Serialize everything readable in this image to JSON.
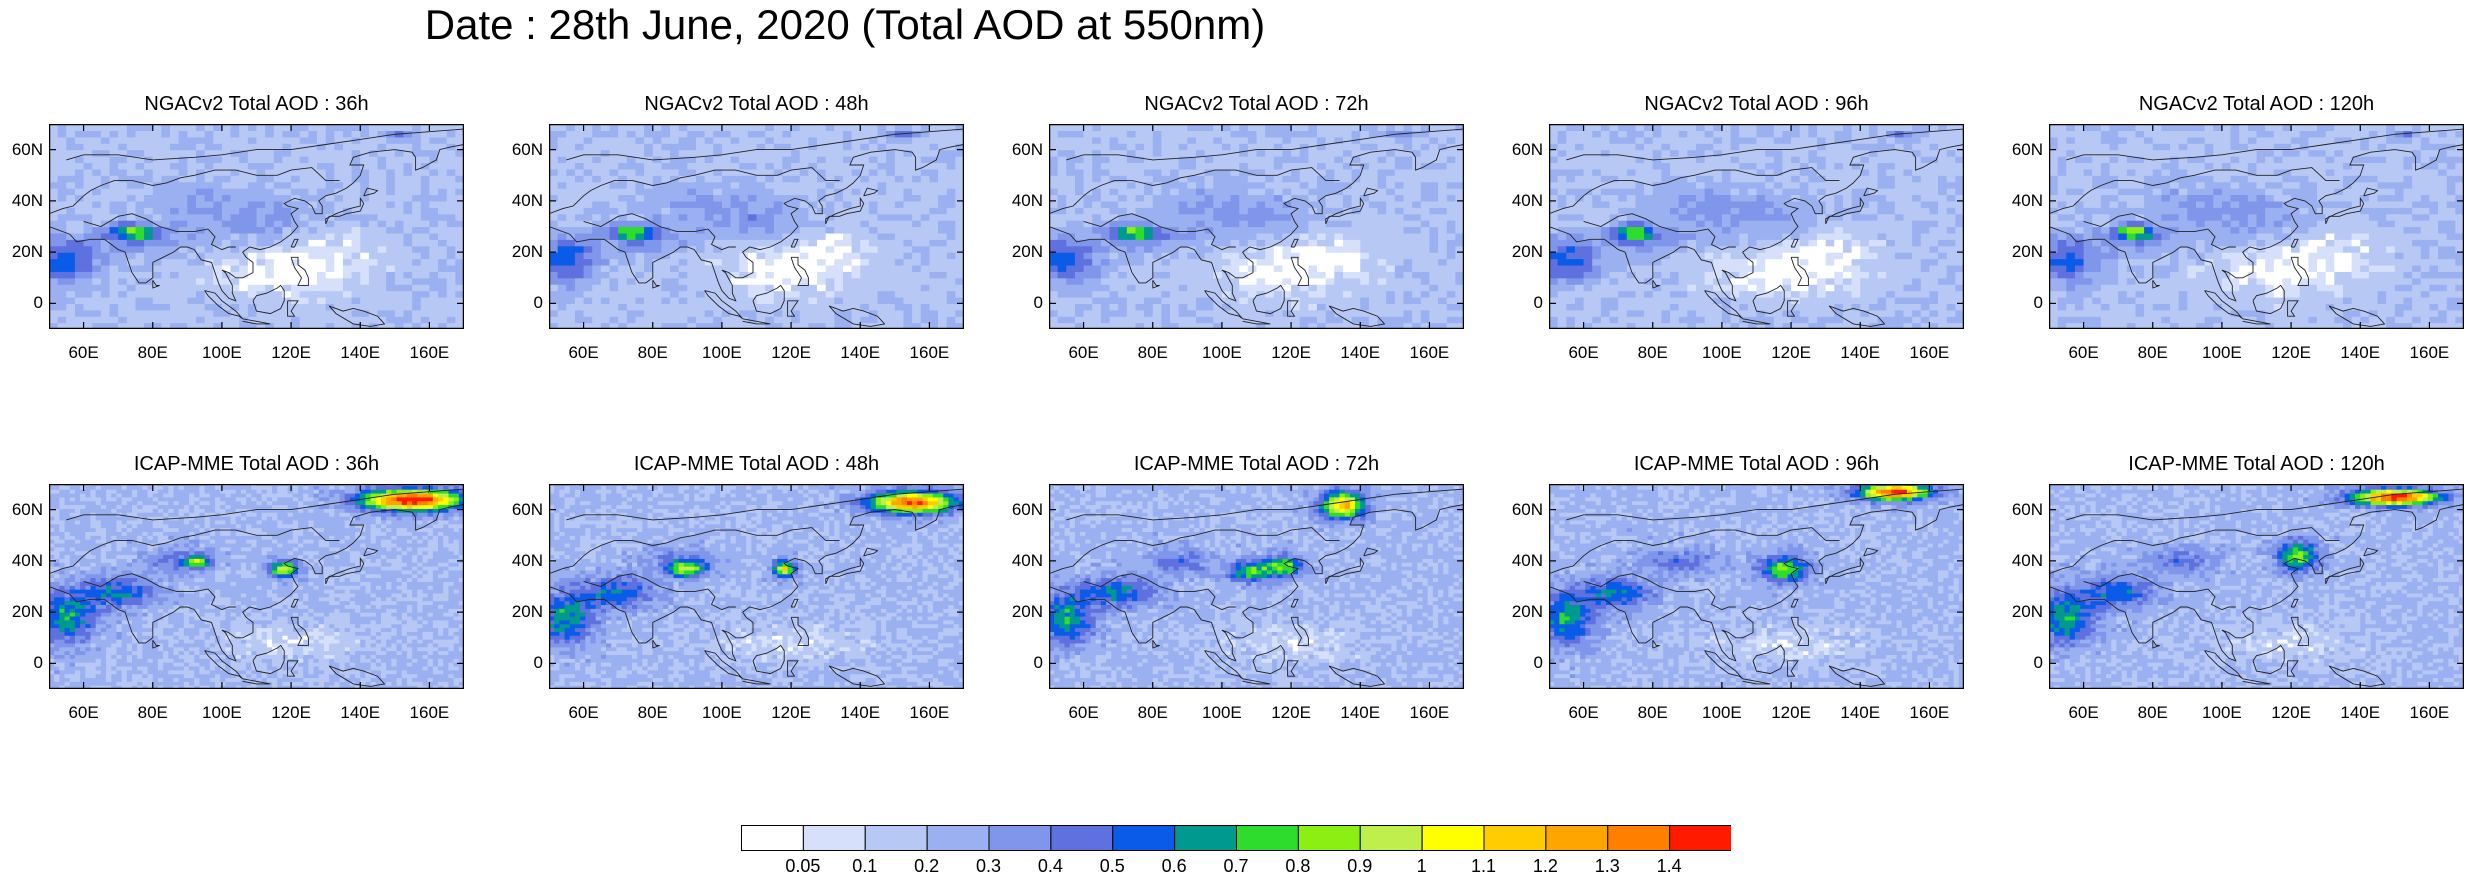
{
  "title": "Date : 28th June, 2020 (Total AOD at 550nm)",
  "panels": [
    {
      "model": "NGACv2",
      "lead": "36h",
      "title": "NGACv2 Total AOD : 36h"
    },
    {
      "model": "NGACv2",
      "lead": "48h",
      "title": "NGACv2 Total AOD : 48h"
    },
    {
      "model": "NGACv2",
      "lead": "72h",
      "title": "NGACv2 Total AOD : 72h"
    },
    {
      "model": "NGACv2",
      "lead": "96h",
      "title": "NGACv2 Total AOD : 96h"
    },
    {
      "model": "NGACv2",
      "lead": "120h",
      "title": "NGACv2 Total AOD : 120h"
    },
    {
      "model": "ICAP-MME",
      "lead": "36h",
      "title": "ICAP-MME Total AOD : 36h"
    },
    {
      "model": "ICAP-MME",
      "lead": "48h",
      "title": "ICAP-MME Total AOD : 48h"
    },
    {
      "model": "ICAP-MME",
      "lead": "72h",
      "title": "ICAP-MME Total AOD : 72h"
    },
    {
      "model": "ICAP-MME",
      "lead": "96h",
      "title": "ICAP-MME Total AOD : 96h"
    },
    {
      "model": "ICAP-MME",
      "lead": "120h",
      "title": "ICAP-MME Total AOD : 120h"
    }
  ],
  "map": {
    "lon_range": [
      50,
      170
    ],
    "lat_range": [
      -10,
      70
    ],
    "x_ticks": [
      "60E",
      "80E",
      "100E",
      "120E",
      "140E",
      "160E"
    ],
    "x_tick_values": [
      60,
      80,
      100,
      120,
      140,
      160
    ],
    "y_ticks": [
      "60N",
      "40N",
      "20N",
      "0"
    ],
    "y_tick_values": [
      60,
      40,
      20,
      0
    ]
  },
  "colorbar": {
    "labels": [
      "0.05",
      "0.1",
      "0.2",
      "0.3",
      "0.4",
      "0.5",
      "0.6",
      "0.7",
      "0.8",
      "0.9",
      "1",
      "1.1",
      "1.2",
      "1.3",
      "1.4"
    ],
    "colors": [
      "#ffffff",
      "#d6e0fb",
      "#b8c8f5",
      "#9bb0f0",
      "#7f96ea",
      "#5f70df",
      "#0a5ce8",
      "#00998f",
      "#2edc2e",
      "#8cef14",
      "#bfef4a",
      "#ffff00",
      "#ffcc00",
      "#ffa500",
      "#ff7f00",
      "#ff1a00"
    ]
  }
}
